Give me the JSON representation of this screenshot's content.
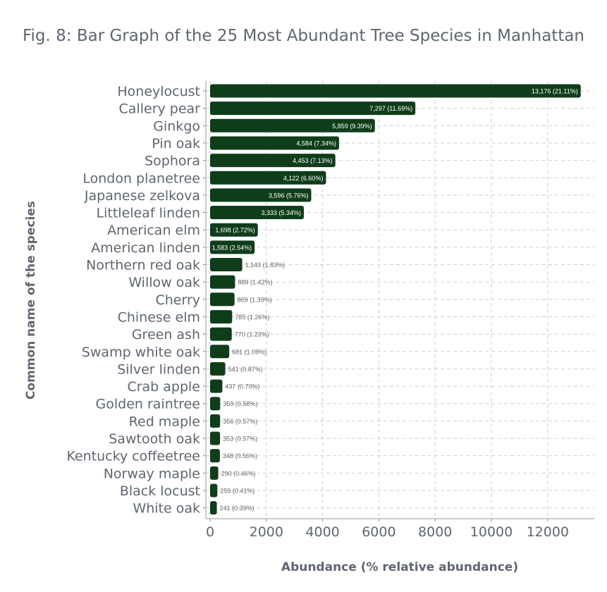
{
  "chart_data": {
    "type": "bar",
    "orientation": "horizontal",
    "title": "Fig. 8: Bar Graph of the 25 Most Abundant Tree Species in Manhattan",
    "xlabel": "Abundance (% relative abundance)",
    "ylabel": "Common name of the species",
    "xlim": [
      0,
      13500
    ],
    "xticks": [
      0,
      2000,
      4000,
      6000,
      8000,
      10000,
      12000
    ],
    "grid": true,
    "bar_color": "#0f3d1a",
    "label_inside_color": "#ffffff",
    "label_outside_color": "#666666",
    "categories": [
      "Honeylocust",
      "Callery pear",
      "Ginkgo",
      "Pin oak",
      "Sophora",
      "London planetree",
      "Japanese zelkova",
      "Littleleaf linden",
      "American elm",
      "American linden",
      "Northern red oak",
      "Willow oak",
      "Cherry",
      "Chinese elm",
      "Green ash",
      "Swamp white oak",
      "Silver linden",
      "Crab apple",
      "Golden raintree",
      "Red maple",
      "Sawtooth oak",
      "Kentucky coffeetree",
      "Norway maple",
      "Black locust",
      "White oak"
    ],
    "values": [
      13176,
      7297,
      5859,
      4584,
      4453,
      4122,
      3596,
      3333,
      1698,
      1583,
      1143,
      889,
      869,
      785,
      770,
      681,
      541,
      437,
      359,
      356,
      353,
      348,
      290,
      259,
      241
    ],
    "data_labels": [
      "13,176 (21.11%)",
      "7,297 (11.69%)",
      "5,859 (9.39%)",
      "4,584 (7.34%)",
      "4,453 (7.13%)",
      "4,122 (6.60%)",
      "3,596 (5.76%)",
      "3,333 (5.34%)",
      "1,698 (2.72%)",
      "1,583 (2.54%)",
      "1,143 (1.83%)",
      "889 (1.42%)",
      "869 (1.39%)",
      "785 (1.26%)",
      "770 (1.23%)",
      "681 (1.09%)",
      "541 (0.87%)",
      "437 (0.70%)",
      "359 (0.58%)",
      "356 (0.57%)",
      "353 (0.57%)",
      "348 (0.56%)",
      "290 (0.46%)",
      "259 (0.41%)",
      "241 (0.39%)"
    ]
  }
}
